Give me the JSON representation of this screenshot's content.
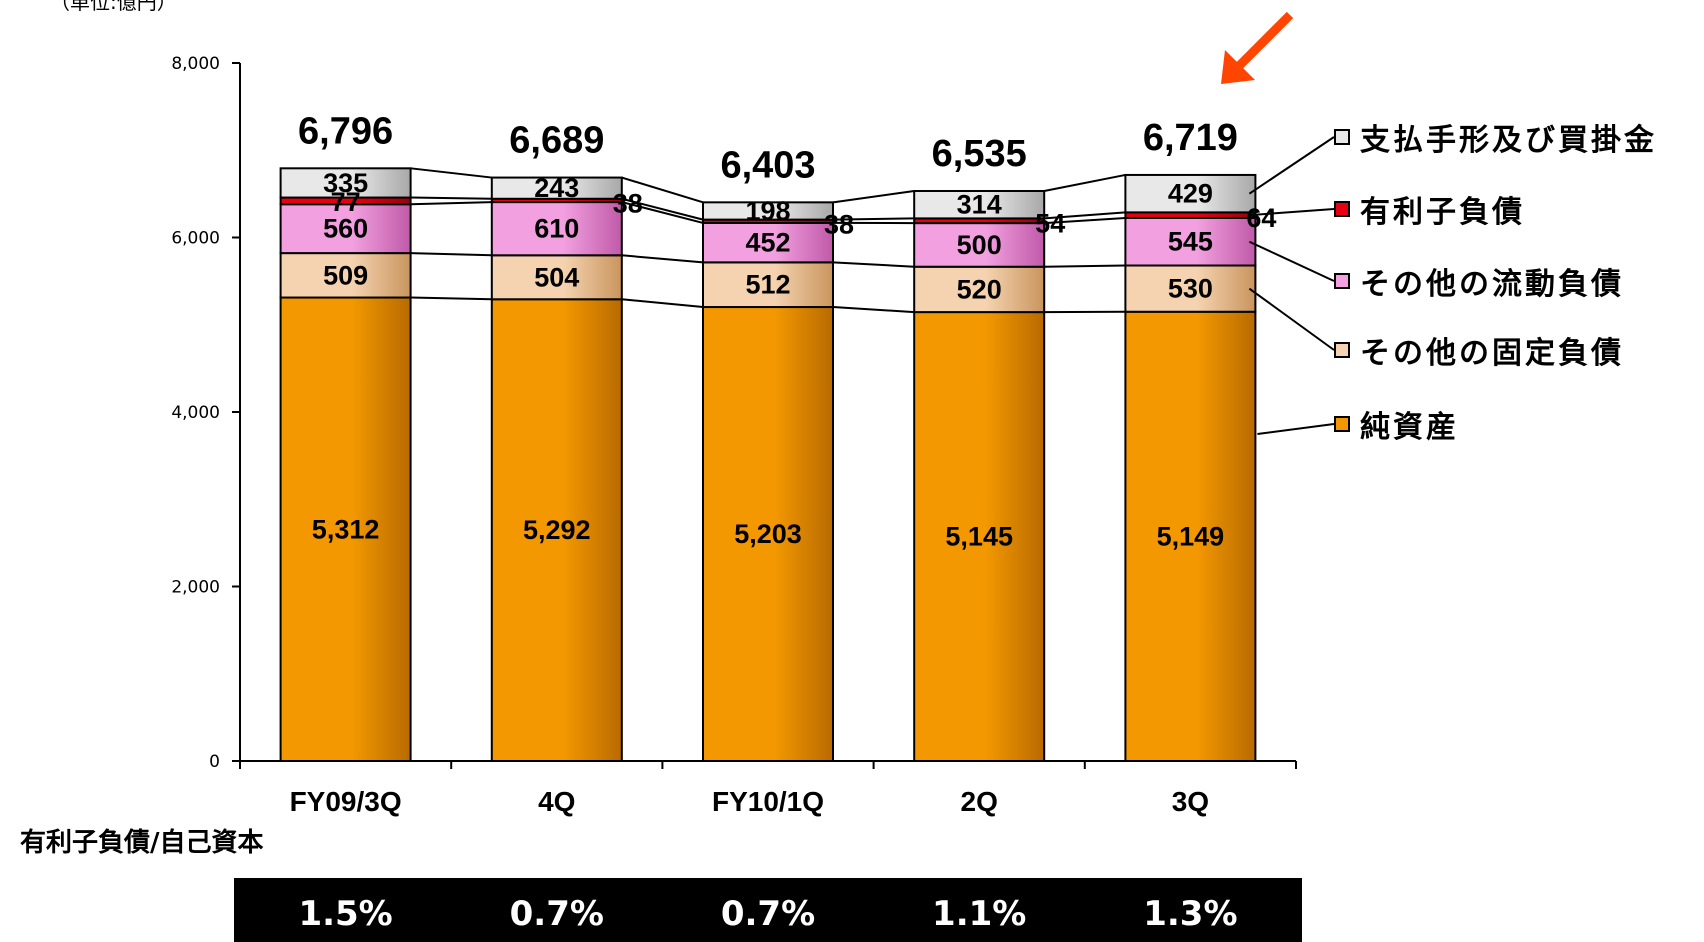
{
  "unit_label": "（単位:億円）",
  "ratio_section": {
    "label": "有利子負債/自己資本",
    "values": [
      "1.5%",
      "0.7%",
      "0.7%",
      "1.1%",
      "1.3%"
    ]
  },
  "colors": {
    "net_assets": "#f39800",
    "other_fixed": "#f5d3b0",
    "other_current": "#f2a0e0",
    "interest_bearing": "#e60012",
    "payables": "#e8e8e8",
    "arrow": "#ff4500"
  },
  "icons": {
    "highlight_arrow": "arrow-icon"
  },
  "chart_data": {
    "type": "bar",
    "stacked": true,
    "categories": [
      "FY09/3Q",
      "4Q",
      "FY10/1Q",
      "2Q",
      "3Q"
    ],
    "series": [
      {
        "name": "純資産",
        "values": [
          5312,
          5292,
          5203,
          5145,
          5149
        ]
      },
      {
        "name": "その他の固定負債",
        "values": [
          509,
          504,
          512,
          520,
          530
        ]
      },
      {
        "name": "その他の流動負債",
        "values": [
          560,
          610,
          452,
          500,
          545
        ]
      },
      {
        "name": "有利子負債",
        "values": [
          77,
          38,
          38,
          54,
          64
        ]
      },
      {
        "name": "支払手形及び買掛金",
        "values": [
          335,
          243,
          198,
          314,
          429
        ]
      }
    ],
    "value_labels": [
      [
        "5,312",
        "5,292",
        "5,203",
        "5,145",
        "5,149"
      ],
      [
        "509",
        "504",
        "512",
        "520",
        "530"
      ],
      [
        "560",
        "610",
        "452",
        "500",
        "545"
      ],
      [
        "77",
        "38",
        "38",
        "54",
        "64"
      ],
      [
        "335",
        "243",
        "198",
        "314",
        "429"
      ]
    ],
    "totals": [
      "6,796",
      "6,689",
      "6,403",
      "6,535",
      "6,719"
    ],
    "yticks": [
      "0",
      "2,000",
      "4,000",
      "6,000",
      "8,000"
    ],
    "ylim": [
      0,
      8000
    ],
    "legend_order": [
      "支払手形及び買掛金",
      "有利子負債",
      "その他の流動負債",
      "その他の固定負債",
      "純資産"
    ],
    "legend_position": "right",
    "grid": false
  }
}
